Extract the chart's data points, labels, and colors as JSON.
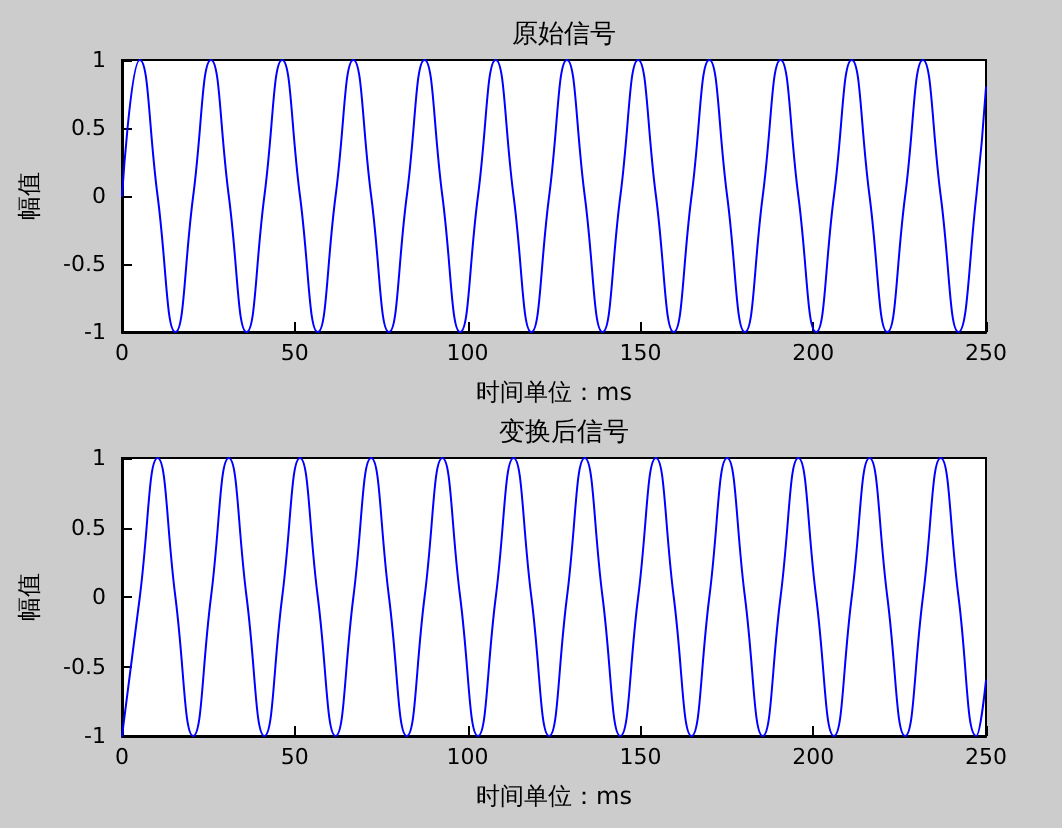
{
  "chart_data": [
    {
      "type": "line",
      "title": "原始信号",
      "xlabel": "时间单位：ms",
      "ylabel": "幅值",
      "color": "#0000ff",
      "marker": "none",
      "line_style": "solid",
      "grid": false,
      "xlim": [
        0,
        250
      ],
      "xticks": [
        0,
        50,
        100,
        150,
        200,
        250
      ],
      "ylim": [
        -1,
        1
      ],
      "yticks": [
        -1,
        -0.5,
        0,
        0.5,
        1
      ],
      "x": [
        0,
        5.15,
        10.3,
        15.45,
        20.6,
        25.75,
        30.9,
        36.05,
        41.2,
        46.35,
        51.5,
        56.65,
        61.8,
        66.95,
        72.1,
        77.25,
        82.4,
        87.55,
        92.7,
        97.85,
        103,
        108.15,
        113.3,
        118.45,
        123.6,
        128.75,
        133.9,
        139.05,
        144.2,
        149.35,
        154.5,
        159.65,
        164.8,
        169.95,
        175.1,
        180.25,
        185.4,
        190.55,
        195.7,
        200.85,
        206,
        211.15,
        216.3,
        221.45,
        226.6,
        231.75,
        236.9,
        242.05,
        247.2,
        250
      ],
      "values": [
        0,
        1,
        0,
        -1,
        0,
        1,
        0,
        -1,
        0,
        1,
        0,
        -1,
        0,
        1,
        0,
        -1,
        0,
        1,
        0,
        -1,
        0,
        1,
        0,
        -1,
        0,
        1,
        0,
        -1,
        0,
        1,
        0,
        -1,
        0,
        1,
        0,
        -1,
        0,
        1,
        0,
        -1,
        0,
        1,
        0,
        -1,
        0,
        1,
        0,
        -1,
        0,
        0.8
      ]
    },
    {
      "type": "line",
      "title": "变换后信号",
      "xlabel": "时间单位：ms",
      "ylabel": "幅值",
      "color": "#0000ff",
      "marker": "none",
      "line_style": "solid",
      "grid": false,
      "xlim": [
        0,
        250
      ],
      "xticks": [
        0,
        50,
        100,
        150,
        200,
        250
      ],
      "ylim": [
        -1,
        1
      ],
      "yticks": [
        -1,
        -0.5,
        0,
        0.5,
        1
      ],
      "x": [
        0,
        5.15,
        10.3,
        15.45,
        20.6,
        25.75,
        30.9,
        36.05,
        41.2,
        46.35,
        51.5,
        56.65,
        61.8,
        66.95,
        72.1,
        77.25,
        82.4,
        87.55,
        92.7,
        97.85,
        103,
        108.15,
        113.3,
        118.45,
        123.6,
        128.75,
        133.9,
        139.05,
        144.2,
        149.35,
        154.5,
        159.65,
        164.8,
        169.95,
        175.1,
        180.25,
        185.4,
        190.55,
        195.7,
        200.85,
        206,
        211.15,
        216.3,
        221.45,
        226.6,
        231.75,
        236.9,
        242.05,
        247.2,
        250
      ],
      "values": [
        -1,
        0,
        1,
        0,
        -1,
        0,
        1,
        0,
        -1,
        0,
        1,
        0,
        -1,
        0,
        1,
        0,
        -1,
        0,
        1,
        0,
        -1,
        0,
        1,
        0,
        -1,
        0,
        1,
        0,
        -1,
        0,
        1,
        0,
        -1,
        0,
        1,
        0,
        -1,
        0,
        1,
        0,
        -1,
        0,
        1,
        0,
        -1,
        0,
        1,
        0,
        -1,
        -0.6
      ]
    }
  ]
}
